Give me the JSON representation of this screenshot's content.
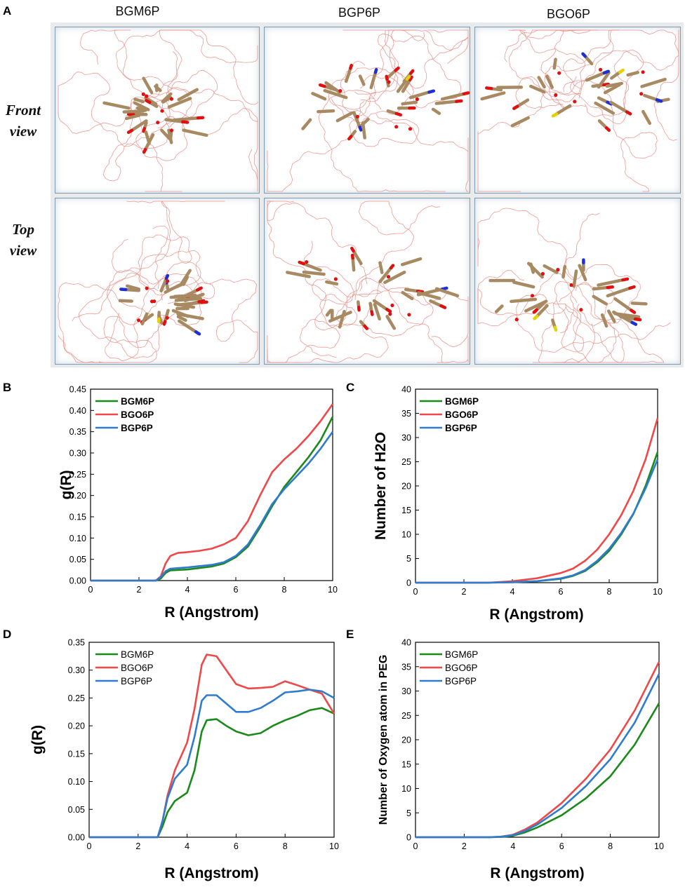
{
  "panel_a": {
    "letter": "A",
    "columns": [
      "BGM6P",
      "BGP6P",
      "BGO6P"
    ],
    "rows": [
      {
        "line1": "Front",
        "line2": "view"
      },
      {
        "line1": "Top",
        "line2": "view"
      }
    ],
    "atom_colors": {
      "carbon": "#a88a62",
      "nitrogen": "#1f2fd6",
      "oxygen": "#e01010",
      "sulfur": "#e6d000",
      "peg_wire": "#e98a82"
    }
  },
  "chart_data": [
    {
      "id": "B",
      "type": "line",
      "letter": "B",
      "xlabel": "R (Angstrom)",
      "ylabel": "g(R)",
      "xlim": [
        0,
        10
      ],
      "ylim": [
        0,
        0.45
      ],
      "xticks": [
        "0",
        "2",
        "4",
        "6",
        "8",
        "10"
      ],
      "yticks": [
        "0.00",
        "0.05",
        "0.10",
        "0.15",
        "0.20",
        "0.25",
        "0.30",
        "0.35",
        "0.40",
        "0.45"
      ],
      "legend": [
        "BGM6P",
        "BGO6P",
        "BGP6P"
      ],
      "series": [
        {
          "name": "BGM6P",
          "color": "#1a8a1a",
          "points": [
            [
              0,
              0
            ],
            [
              2.7,
              0
            ],
            [
              2.9,
              0.005
            ],
            [
              3.1,
              0.018
            ],
            [
              3.3,
              0.024
            ],
            [
              4,
              0.026
            ],
            [
              5,
              0.033
            ],
            [
              5.5,
              0.04
            ],
            [
              6,
              0.055
            ],
            [
              6.5,
              0.08
            ],
            [
              7,
              0.125
            ],
            [
              7.5,
              0.175
            ],
            [
              8,
              0.22
            ],
            [
              8.5,
              0.255
            ],
            [
              9,
              0.29
            ],
            [
              9.5,
              0.33
            ],
            [
              10,
              0.385
            ]
          ]
        },
        {
          "name": "BGO6P",
          "color": "#f04848",
          "points": [
            [
              0,
              0
            ],
            [
              2.7,
              0
            ],
            [
              2.9,
              0.01
            ],
            [
              3.1,
              0.04
            ],
            [
              3.3,
              0.058
            ],
            [
              3.6,
              0.065
            ],
            [
              4,
              0.067
            ],
            [
              4.5,
              0.07
            ],
            [
              5,
              0.075
            ],
            [
              5.5,
              0.085
            ],
            [
              6,
              0.1
            ],
            [
              6.5,
              0.14
            ],
            [
              7,
              0.2
            ],
            [
              7.5,
              0.255
            ],
            [
              8,
              0.285
            ],
            [
              8.5,
              0.31
            ],
            [
              9,
              0.34
            ],
            [
              9.5,
              0.375
            ],
            [
              10,
              0.415
            ]
          ]
        },
        {
          "name": "BGP6P",
          "color": "#2e7bd0",
          "points": [
            [
              0,
              0
            ],
            [
              2.7,
              0
            ],
            [
              2.9,
              0.008
            ],
            [
              3.1,
              0.022
            ],
            [
              3.3,
              0.028
            ],
            [
              4,
              0.031
            ],
            [
              5,
              0.037
            ],
            [
              5.5,
              0.043
            ],
            [
              6,
              0.058
            ],
            [
              6.5,
              0.085
            ],
            [
              7,
              0.13
            ],
            [
              7.5,
              0.18
            ],
            [
              8,
              0.215
            ],
            [
              8.5,
              0.245
            ],
            [
              9,
              0.275
            ],
            [
              9.5,
              0.31
            ],
            [
              10,
              0.35
            ]
          ]
        }
      ]
    },
    {
      "id": "C",
      "type": "line",
      "letter": "C",
      "xlabel": "R (Angstrom)",
      "ylabel": "Number of H2O",
      "xlim": [
        0,
        10
      ],
      "ylim": [
        0,
        40
      ],
      "xticks": [
        "0",
        "2",
        "4",
        "6",
        "8",
        "10"
      ],
      "yticks": [
        "0",
        "5",
        "10",
        "15",
        "20",
        "25",
        "30",
        "35",
        "40"
      ],
      "legend": [
        "BGM6P",
        "BGO6P",
        "BGP6P"
      ],
      "series": [
        {
          "name": "BGM6P",
          "color": "#1a8a1a",
          "points": [
            [
              0,
              0
            ],
            [
              3,
              0
            ],
            [
              4,
              0.1
            ],
            [
              5,
              0.3
            ],
            [
              6,
              0.8
            ],
            [
              6.5,
              1.4
            ],
            [
              7,
              2.4
            ],
            [
              7.5,
              4.2
            ],
            [
              8,
              6.6
            ],
            [
              8.5,
              10
            ],
            [
              9,
              14.2
            ],
            [
              9.5,
              20
            ],
            [
              10,
              27
            ]
          ]
        },
        {
          "name": "BGO6P",
          "color": "#f04848",
          "points": [
            [
              0,
              0
            ],
            [
              3,
              0
            ],
            [
              4,
              0.3
            ],
            [
              5,
              0.9
            ],
            [
              6,
              2
            ],
            [
              6.5,
              2.9
            ],
            [
              7,
              4.5
            ],
            [
              7.5,
              6.8
            ],
            [
              8,
              10
            ],
            [
              8.5,
              14
            ],
            [
              9,
              19
            ],
            [
              9.5,
              25.5
            ],
            [
              10,
              34
            ]
          ]
        },
        {
          "name": "BGP6P",
          "color": "#2e7bd0",
          "points": [
            [
              0,
              0
            ],
            [
              3,
              0
            ],
            [
              4,
              0.1
            ],
            [
              5,
              0.3
            ],
            [
              6,
              0.9
            ],
            [
              6.5,
              1.5
            ],
            [
              7,
              2.6
            ],
            [
              7.5,
              4.5
            ],
            [
              8,
              7
            ],
            [
              8.5,
              10.3
            ],
            [
              9,
              14.3
            ],
            [
              9.5,
              19.5
            ],
            [
              10,
              25.5
            ]
          ]
        }
      ]
    },
    {
      "id": "D",
      "type": "line",
      "letter": "D",
      "xlabel": "R (Angstrom)",
      "ylabel": "g(R)",
      "xlim": [
        0,
        10
      ],
      "ylim": [
        0,
        0.35
      ],
      "xticks": [
        "0",
        "2",
        "4",
        "6",
        "8",
        "10"
      ],
      "yticks": [
        "0.00",
        "0.05",
        "0.10",
        "0.15",
        "0.20",
        "0.25",
        "0.30",
        "0.35"
      ],
      "legend": [
        "BGM6P",
        "BGO6P",
        "BGP6P"
      ],
      "series": [
        {
          "name": "BGM6P",
          "color": "#1a8a1a",
          "points": [
            [
              0,
              0
            ],
            [
              2.8,
              0
            ],
            [
              3,
              0.02
            ],
            [
              3.2,
              0.045
            ],
            [
              3.5,
              0.065
            ],
            [
              4,
              0.08
            ],
            [
              4.3,
              0.12
            ],
            [
              4.6,
              0.19
            ],
            [
              4.8,
              0.21
            ],
            [
              5.2,
              0.212
            ],
            [
              5.6,
              0.2
            ],
            [
              6,
              0.19
            ],
            [
              6.5,
              0.183
            ],
            [
              7,
              0.187
            ],
            [
              7.5,
              0.2
            ],
            [
              8,
              0.21
            ],
            [
              8.5,
              0.218
            ],
            [
              9,
              0.228
            ],
            [
              9.5,
              0.232
            ],
            [
              10,
              0.222
            ]
          ]
        },
        {
          "name": "BGO6P",
          "color": "#f04848",
          "points": [
            [
              0,
              0
            ],
            [
              2.8,
              0
            ],
            [
              3,
              0.03
            ],
            [
              3.2,
              0.075
            ],
            [
              3.5,
              0.12
            ],
            [
              4,
              0.17
            ],
            [
              4.3,
              0.23
            ],
            [
              4.6,
              0.31
            ],
            [
              4.8,
              0.328
            ],
            [
              5.2,
              0.325
            ],
            [
              5.6,
              0.3
            ],
            [
              6,
              0.275
            ],
            [
              6.5,
              0.267
            ],
            [
              7,
              0.268
            ],
            [
              7.5,
              0.27
            ],
            [
              8,
              0.28
            ],
            [
              8.5,
              0.273
            ],
            [
              9,
              0.265
            ],
            [
              9.5,
              0.258
            ],
            [
              10,
              0.222
            ]
          ]
        },
        {
          "name": "BGP6P",
          "color": "#2e7bd0",
          "points": [
            [
              0,
              0
            ],
            [
              2.8,
              0
            ],
            [
              3,
              0.03
            ],
            [
              3.2,
              0.07
            ],
            [
              3.5,
              0.105
            ],
            [
              4,
              0.13
            ],
            [
              4.3,
              0.18
            ],
            [
              4.6,
              0.245
            ],
            [
              4.8,
              0.255
            ],
            [
              5.2,
              0.255
            ],
            [
              5.6,
              0.24
            ],
            [
              6,
              0.225
            ],
            [
              6.5,
              0.225
            ],
            [
              7,
              0.232
            ],
            [
              7.5,
              0.245
            ],
            [
              8,
              0.26
            ],
            [
              8.5,
              0.262
            ],
            [
              9,
              0.265
            ],
            [
              9.5,
              0.262
            ],
            [
              10,
              0.25
            ]
          ]
        }
      ]
    },
    {
      "id": "E",
      "type": "line",
      "letter": "E",
      "xlabel": "R (Angstrom)",
      "ylabel": "Number of Oxygen atom in PEG",
      "xlim": [
        0,
        10
      ],
      "ylim": [
        0,
        40
      ],
      "xticks": [
        "0",
        "2",
        "4",
        "6",
        "8",
        "10"
      ],
      "yticks": [
        "0",
        "5",
        "10",
        "15",
        "20",
        "25",
        "30",
        "35",
        "40"
      ],
      "legend": [
        "BGM6P",
        "BGO6P",
        "BGP6P"
      ],
      "series": [
        {
          "name": "BGM6P",
          "color": "#1a8a1a",
          "points": [
            [
              0,
              0
            ],
            [
              3,
              0
            ],
            [
              3.5,
              0.05
            ],
            [
              4,
              0.3
            ],
            [
              4.5,
              1
            ],
            [
              5,
              2
            ],
            [
              6,
              4.5
            ],
            [
              7,
              8
            ],
            [
              8,
              12.5
            ],
            [
              9,
              19
            ],
            [
              10,
              27.5
            ]
          ]
        },
        {
          "name": "BGO6P",
          "color": "#f04848",
          "points": [
            [
              0,
              0
            ],
            [
              3,
              0
            ],
            [
              3.5,
              0.1
            ],
            [
              4,
              0.5
            ],
            [
              4.5,
              1.6
            ],
            [
              5,
              3
            ],
            [
              6,
              7
            ],
            [
              7,
              12
            ],
            [
              8,
              18
            ],
            [
              9,
              26
            ],
            [
              10,
              36
            ]
          ]
        },
        {
          "name": "BGP6P",
          "color": "#2e7bd0",
          "points": [
            [
              0,
              0
            ],
            [
              3,
              0
            ],
            [
              3.5,
              0.1
            ],
            [
              4,
              0.4
            ],
            [
              4.5,
              1.3
            ],
            [
              5,
              2.6
            ],
            [
              6,
              6
            ],
            [
              7,
              10.5
            ],
            [
              8,
              16
            ],
            [
              9,
              23.5
            ],
            [
              10,
              33.5
            ]
          ]
        }
      ]
    }
  ]
}
